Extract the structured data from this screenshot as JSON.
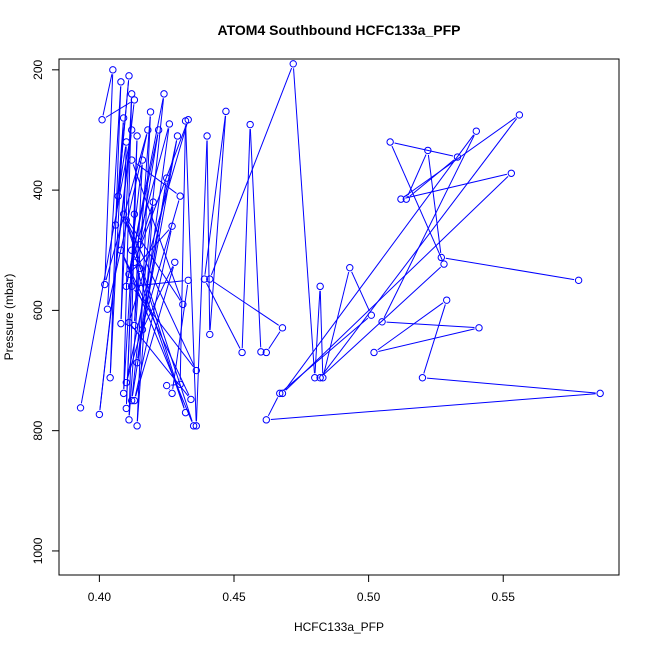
{
  "chart_data": {
    "type": "line",
    "title": "ATOM4 Southbound HCFC133a_PFP",
    "xlabel": "HCFC133a_PFP",
    "ylabel": "Pressure (mbar)",
    "xlim": [
      0.385,
      0.593
    ],
    "ylim": [
      1040,
      182
    ],
    "y_reversed": true,
    "grid": false,
    "x_ticks": [
      0.4,
      0.45,
      0.5,
      0.55
    ],
    "x_tick_labels": [
      "0.40",
      "0.45",
      "0.50",
      "0.55"
    ],
    "y_ticks": [
      200,
      400,
      600,
      800,
      1000
    ],
    "y_tick_labels": [
      "200",
      "400",
      "600",
      "800",
      "1000"
    ],
    "series_color": "#0000ff",
    "x": [
      0.393,
      0.412,
      0.4,
      0.413,
      0.401,
      0.405,
      0.402,
      0.418,
      0.403,
      0.408,
      0.404,
      0.409,
      0.406,
      0.411,
      0.407,
      0.41,
      0.408,
      0.412,
      0.409,
      0.413,
      0.41,
      0.414,
      0.411,
      0.415,
      0.412,
      0.416,
      0.413,
      0.419,
      0.414,
      0.42,
      0.415,
      0.422,
      0.41,
      0.424,
      0.412,
      0.425,
      0.414,
      0.426,
      0.411,
      0.427,
      0.413,
      0.428,
      0.416,
      0.429,
      0.41,
      0.43,
      0.412,
      0.431,
      0.409,
      0.432,
      0.413,
      0.433,
      0.411,
      0.434,
      0.408,
      0.435,
      0.41,
      0.436,
      0.412,
      0.433,
      0.427,
      0.425,
      0.43,
      0.432,
      0.436,
      0.44,
      0.441,
      0.447,
      0.439,
      0.453,
      0.456,
      0.46,
      0.462,
      0.468,
      0.441,
      0.472,
      0.48,
      0.482,
      0.483,
      0.493,
      0.501,
      0.467,
      0.462,
      0.586,
      0.52,
      0.529,
      0.502,
      0.541,
      0.505,
      0.54,
      0.468,
      0.553,
      0.512,
      0.556,
      0.482,
      0.528,
      0.508,
      0.533,
      0.514,
      0.522,
      0.527,
      0.578
    ],
    "y": [
      762,
      300,
      773,
      250,
      283,
      200,
      557,
      300,
      598,
      220,
      712,
      280,
      458,
      210,
      410,
      320,
      622,
      240,
      738,
      440,
      763,
      310,
      782,
      530,
      500,
      350,
      625,
      270,
      792,
      420,
      491,
      300,
      560,
      240,
      750,
      380,
      687,
      290,
      540,
      460,
      750,
      520,
      632,
      310,
      720,
      410,
      350,
      590,
      440,
      770,
      520,
      283,
      620,
      748,
      500,
      792,
      450,
      700,
      560,
      550,
      738,
      725,
      723,
      285,
      792,
      310,
      640,
      269,
      548,
      670,
      291,
      669,
      670,
      629,
      548,
      190,
      712,
      560,
      712,
      529,
      608,
      738,
      782,
      738,
      712,
      583,
      670,
      629,
      619,
      302,
      738,
      372,
      415,
      275,
      712,
      523,
      320,
      345,
      415,
      334,
      512,
      550
    ]
  }
}
